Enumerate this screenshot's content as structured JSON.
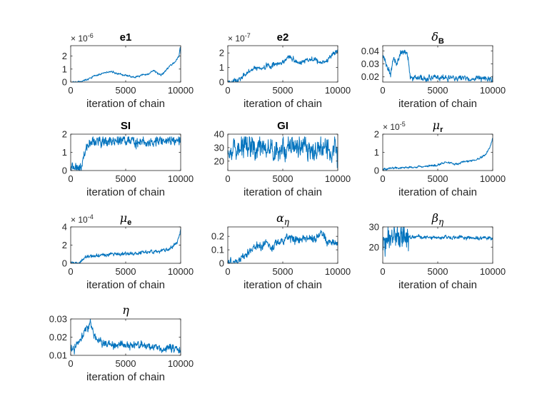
{
  "chart_data": [
    {
      "type": "line",
      "title": "e1",
      "title_parts": [
        {
          "t": "e1",
          "style": "bold"
        }
      ],
      "xlabel": "iteration of chain",
      "xlim": [
        0,
        10000
      ],
      "ylim": [
        0,
        2.8
      ],
      "xticks": [
        0,
        5000,
        10000
      ],
      "yticks": [
        0,
        1,
        2
      ],
      "ytick_labels": [
        "0",
        "1",
        "2"
      ],
      "multiplier": {
        "base": "× 10",
        "exp": "-6"
      },
      "color": "#0072BD",
      "keypoints": [
        [
          0,
          0.02
        ],
        [
          900,
          0.02
        ],
        [
          1200,
          0.15
        ],
        [
          1800,
          0.3
        ],
        [
          2500,
          0.55
        ],
        [
          3200,
          0.75
        ],
        [
          3600,
          0.8
        ],
        [
          4200,
          0.65
        ],
        [
          4800,
          0.55
        ],
        [
          5300,
          0.45
        ],
        [
          5800,
          0.35
        ],
        [
          6300,
          0.5
        ],
        [
          6800,
          0.6
        ],
        [
          7200,
          0.65
        ],
        [
          7500,
          0.9
        ],
        [
          7800,
          0.75
        ],
        [
          8200,
          0.5
        ],
        [
          8600,
          0.85
        ],
        [
          9000,
          1.2
        ],
        [
          9300,
          1.4
        ],
        [
          9600,
          1.7
        ],
        [
          9850,
          2.0
        ],
        [
          9950,
          2.7
        ],
        [
          10000,
          2.2
        ]
      ],
      "noise": 0.08,
      "seed": 11
    },
    {
      "type": "line",
      "title": "e2",
      "title_parts": [
        {
          "t": "e2",
          "style": "bold"
        }
      ],
      "xlabel": "iteration of chain",
      "xlim": [
        0,
        10000
      ],
      "ylim": [
        0,
        2.5
      ],
      "xticks": [
        0,
        5000,
        10000
      ],
      "yticks": [
        0,
        1,
        2
      ],
      "ytick_labels": [
        "0",
        "1",
        "2"
      ],
      "multiplier": {
        "base": "× 10",
        "exp": "-7"
      },
      "color": "#0072BD",
      "keypoints": [
        [
          0,
          0.05
        ],
        [
          900,
          0.05
        ],
        [
          1300,
          0.4
        ],
        [
          1800,
          0.7
        ],
        [
          2500,
          0.95
        ],
        [
          3200,
          1.0
        ],
        [
          3800,
          1.1
        ],
        [
          4500,
          1.2
        ],
        [
          5200,
          1.5
        ],
        [
          5600,
          1.9
        ],
        [
          6000,
          1.5
        ],
        [
          6500,
          1.3
        ],
        [
          7000,
          1.4
        ],
        [
          7500,
          1.6
        ],
        [
          8000,
          1.5
        ],
        [
          8500,
          1.3
        ],
        [
          9000,
          1.5
        ],
        [
          9500,
          1.9
        ],
        [
          10000,
          2.2
        ]
      ],
      "noise": 0.18,
      "seed": 23
    },
    {
      "type": "line",
      "title": "δB",
      "title_parts": [
        {
          "t": "δ",
          "style": "greek"
        },
        {
          "t": "B",
          "style": "sub"
        }
      ],
      "xlabel": "iteration of chain",
      "xlim": [
        0,
        10000
      ],
      "ylim": [
        0.016,
        0.044
      ],
      "xticks": [
        0,
        5000,
        10000
      ],
      "yticks": [
        0.02,
        0.03,
        0.04
      ],
      "ytick_labels": [
        "0.02",
        "0.03",
        "0.04"
      ],
      "multiplier": null,
      "color": "#0072BD",
      "keypoints": [
        [
          0,
          0.038
        ],
        [
          300,
          0.03
        ],
        [
          700,
          0.022
        ],
        [
          1000,
          0.035
        ],
        [
          1300,
          0.03
        ],
        [
          1600,
          0.038
        ],
        [
          2000,
          0.04
        ],
        [
          2300,
          0.035
        ],
        [
          2500,
          0.019
        ],
        [
          10000,
          0.019
        ]
      ],
      "noise": 0.0025,
      "seed": 37
    },
    {
      "type": "line",
      "title": "SI",
      "title_parts": [
        {
          "t": "SI",
          "style": "bold"
        }
      ],
      "xlabel": "iteration of chain",
      "xlim": [
        0,
        10000
      ],
      "ylim": [
        0,
        2
      ],
      "xticks": [
        0,
        5000,
        10000
      ],
      "yticks": [
        0,
        1,
        2
      ],
      "ytick_labels": [
        "0",
        "1",
        "2"
      ],
      "multiplier": null,
      "color": "#0072BD",
      "keypoints": [
        [
          0,
          0.15
        ],
        [
          800,
          0.15
        ],
        [
          1000,
          0.3
        ],
        [
          1500,
          1.4
        ],
        [
          2000,
          1.6
        ],
        [
          10000,
          1.6
        ]
      ],
      "noise": 0.3,
      "seed": 41
    },
    {
      "type": "line",
      "title": "GI",
      "title_parts": [
        {
          "t": "GI",
          "style": "bold"
        }
      ],
      "xlabel": "iteration of chain",
      "xlim": [
        0,
        10000
      ],
      "ylim": [
        13,
        40
      ],
      "xticks": [
        0,
        5000,
        10000
      ],
      "yticks": [
        20,
        30,
        40
      ],
      "ytick_labels": [
        "20",
        "30",
        "40"
      ],
      "multiplier": null,
      "color": "#0072BD",
      "keypoints": [
        [
          0,
          30
        ],
        [
          10000,
          28
        ]
      ],
      "noise": 9,
      "seed": 53
    },
    {
      "type": "line",
      "title": "μr",
      "title_parts": [
        {
          "t": "μ",
          "style": "greek"
        },
        {
          "t": "r",
          "style": "sub"
        }
      ],
      "xlabel": "iteration of chain",
      "xlim": [
        0,
        10000
      ],
      "ylim": [
        0,
        2
      ],
      "xticks": [
        0,
        5000,
        10000
      ],
      "yticks": [
        0,
        1,
        2
      ],
      "ytick_labels": [
        "0",
        "1",
        "2"
      ],
      "multiplier": {
        "base": "× 10",
        "exp": "-5"
      },
      "color": "#0072BD",
      "keypoints": [
        [
          0,
          0.1
        ],
        [
          1000,
          0.12
        ],
        [
          3000,
          0.2
        ],
        [
          5000,
          0.3
        ],
        [
          5800,
          0.45
        ],
        [
          6500,
          0.35
        ],
        [
          7500,
          0.5
        ],
        [
          8500,
          0.6
        ],
        [
          9200,
          0.8
        ],
        [
          9700,
          1.2
        ],
        [
          10000,
          1.8
        ]
      ],
      "noise": 0.06,
      "seed": 67
    },
    {
      "type": "line",
      "title": "μe",
      "title_parts": [
        {
          "t": "μ",
          "style": "greek"
        },
        {
          "t": "e",
          "style": "sub"
        }
      ],
      "xlabel": "iteration of chain",
      "xlim": [
        0,
        10000
      ],
      "ylim": [
        0,
        4
      ],
      "xticks": [
        0,
        5000,
        10000
      ],
      "yticks": [
        0,
        2,
        4
      ],
      "ytick_labels": [
        "0",
        "2",
        "4"
      ],
      "multiplier": {
        "base": "× 10",
        "exp": "-4"
      },
      "color": "#0072BD",
      "keypoints": [
        [
          0,
          0.05
        ],
        [
          900,
          0.05
        ],
        [
          1300,
          0.6
        ],
        [
          2000,
          0.8
        ],
        [
          3000,
          0.9
        ],
        [
          4000,
          1.0
        ],
        [
          5000,
          1.0
        ],
        [
          6000,
          1.1
        ],
        [
          7000,
          1.2
        ],
        [
          8000,
          1.3
        ],
        [
          9000,
          1.6
        ],
        [
          9600,
          2.2
        ],
        [
          10000,
          3.6
        ]
      ],
      "noise": 0.22,
      "seed": 71
    },
    {
      "type": "line",
      "title": "αη",
      "title_parts": [
        {
          "t": "α",
          "style": "greek"
        },
        {
          "t": "η",
          "style": "subgreek"
        }
      ],
      "xlabel": "iteration of chain",
      "xlim": [
        0,
        10000
      ],
      "ylim": [
        0,
        0.27
      ],
      "xticks": [
        0,
        5000,
        10000
      ],
      "yticks": [
        0,
        0.1,
        0.2
      ],
      "ytick_labels": [
        "0",
        "0.1",
        "0.2"
      ],
      "multiplier": null,
      "color": "#0072BD",
      "keypoints": [
        [
          0,
          0.01
        ],
        [
          900,
          0.01
        ],
        [
          1200,
          0.05
        ],
        [
          1800,
          0.08
        ],
        [
          2500,
          0.13
        ],
        [
          3000,
          0.12
        ],
        [
          3500,
          0.15
        ],
        [
          4000,
          0.12
        ],
        [
          5000,
          0.17
        ],
        [
          5500,
          0.2
        ],
        [
          6000,
          0.17
        ],
        [
          7000,
          0.19
        ],
        [
          8000,
          0.18
        ],
        [
          8500,
          0.22
        ],
        [
          9000,
          0.17
        ],
        [
          10000,
          0.16
        ]
      ],
      "noise": 0.035,
      "seed": 83
    },
    {
      "type": "line",
      "title": "βη",
      "title_parts": [
        {
          "t": "β",
          "style": "greek"
        },
        {
          "t": "η",
          "style": "subgreek"
        }
      ],
      "xlabel": "iteration of chain",
      "xlim": [
        0,
        10000
      ],
      "ylim": [
        12,
        30
      ],
      "xticks": [
        0,
        5000,
        10000
      ],
      "yticks": [
        20,
        30
      ],
      "ytick_labels": [
        "20",
        "30"
      ],
      "multiplier": null,
      "color": "#0072BD",
      "keypoints": [
        [
          0,
          25
        ],
        [
          2300,
          25
        ],
        [
          2500,
          25
        ],
        [
          10000,
          24.5
        ]
      ],
      "noise": 1.0,
      "wild": [
        0,
        2400,
        7
      ],
      "seed": 97
    },
    {
      "type": "line",
      "title": "η",
      "title_parts": [
        {
          "t": "η",
          "style": "greek"
        }
      ],
      "xlabel": "iteration of chain",
      "xlim": [
        0,
        10000
      ],
      "ylim": [
        0.01,
        0.03
      ],
      "xticks": [
        0,
        5000,
        10000
      ],
      "yticks": [
        0.01,
        0.02,
        0.03
      ],
      "ytick_labels": [
        "0.01",
        "0.02",
        "0.03"
      ],
      "multiplier": null,
      "color": "#0072BD",
      "keypoints": [
        [
          0,
          0.014
        ],
        [
          600,
          0.016
        ],
        [
          1000,
          0.02
        ],
        [
          1400,
          0.024
        ],
        [
          1800,
          0.028
        ],
        [
          2200,
          0.02
        ],
        [
          3000,
          0.017
        ],
        [
          4000,
          0.016
        ],
        [
          5000,
          0.015
        ],
        [
          6000,
          0.016
        ],
        [
          7000,
          0.015
        ],
        [
          8000,
          0.014
        ],
        [
          9000,
          0.014
        ],
        [
          10000,
          0.013
        ]
      ],
      "noise": 0.0025,
      "seed": 101
    }
  ]
}
